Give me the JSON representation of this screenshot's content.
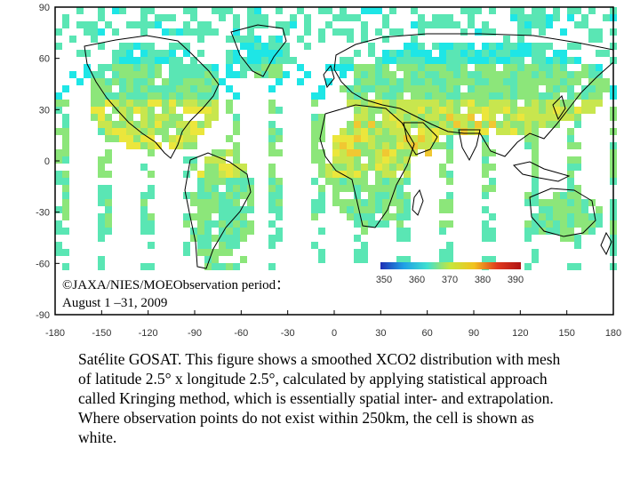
{
  "map": {
    "lat_ticks": [
      "90",
      "60",
      "30",
      "0",
      "-30",
      "-60",
      "-90"
    ],
    "lon_ticks": [
      "-180",
      "-150",
      "-120",
      "-90",
      "-60",
      "-30",
      "0",
      "30",
      "60",
      "90",
      "120",
      "150",
      "180"
    ],
    "colorbar": {
      "ticks": [
        "350",
        "360",
        "370",
        "380",
        "390"
      ],
      "colors": [
        "#1f2fb5",
        "#1fa0e6",
        "#3fe0d0",
        "#c8e63a",
        "#f2c21e",
        "#e0381e",
        "#b01414"
      ]
    },
    "data_colors": {
      "cyan": "#1ee6e6",
      "teal": "#5ae6b4",
      "green": "#8ce67a",
      "yellow_green": "#c8e64e",
      "yellow": "#ebe63c",
      "orange": "#f0c832"
    }
  },
  "credit": {
    "line1": "©JAXA/NIES/MOEObservation period：",
    "line2": "August 1 –31, 2009"
  },
  "caption": "Satélite GOSAT. This figure shows a smoothed XCO2 distribution with mesh of latitude 2.5° x longitude 2.5°, calculated by applying statistical approach called Kringing method, which is essentially spatial inter- and extrapolation. Where observation points do not exist within 250km, the cell is shown as white."
}
